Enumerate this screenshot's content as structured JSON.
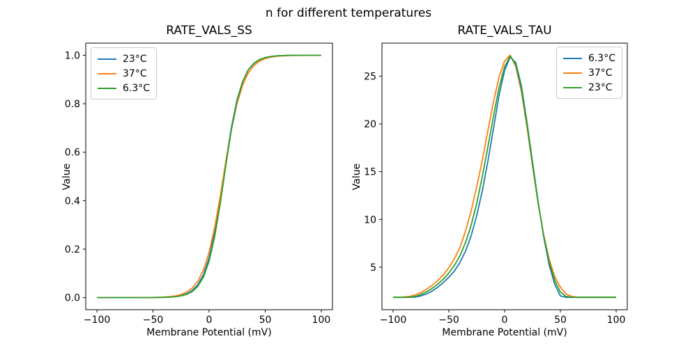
{
  "figure": {
    "suptitle": "n for different temperatures",
    "background": "#ffffff"
  },
  "chart_data": [
    {
      "type": "line",
      "title": "RATE_VALS_SS",
      "xlabel": "Membrane Potential (mV)",
      "ylabel": "Value",
      "xlim": [
        -110,
        110
      ],
      "ylim": [
        -0.05,
        1.05
      ],
      "xticks": [
        -100,
        -50,
        0,
        50,
        100
      ],
      "xtick_labels": [
        "−100",
        "−50",
        "0",
        "50",
        "100"
      ],
      "yticks": [
        0.0,
        0.2,
        0.4,
        0.6,
        0.8,
        1.0
      ],
      "ytick_labels": [
        "0.0",
        "0.2",
        "0.4",
        "0.6",
        "0.8",
        "1.0"
      ],
      "grid": false,
      "legend_position": "upper left",
      "x": [
        -100,
        -95,
        -90,
        -85,
        -80,
        -75,
        -70,
        -65,
        -60,
        -55,
        -50,
        -45,
        -40,
        -35,
        -30,
        -25,
        -20,
        -15,
        -10,
        -5,
        0,
        5,
        10,
        15,
        20,
        25,
        30,
        35,
        40,
        45,
        50,
        55,
        60,
        65,
        70,
        75,
        80,
        85,
        90,
        95,
        100
      ],
      "series": [
        {
          "name": "23°C",
          "color": "#1f77b4",
          "values": [
            0.0,
            0.0,
            0.0,
            0.0,
            0.0,
            0.0,
            0.0,
            0.0001,
            0.0001,
            0.0002,
            0.0004,
            0.0007,
            0.0013,
            0.0025,
            0.0046,
            0.0086,
            0.0159,
            0.0293,
            0.0532,
            0.0949,
            0.1641,
            0.2689,
            0.4073,
            0.5622,
            0.7047,
            0.8176,
            0.8935,
            0.9399,
            0.9668,
            0.982,
            0.9902,
            0.9947,
            0.9971,
            0.9985,
            0.9992,
            0.9996,
            0.9998,
            0.9999,
            0.9999,
            1.0,
            1.0
          ]
        },
        {
          "name": "37°C",
          "color": "#ff7f0e",
          "values": [
            0.0,
            0.0,
            0.0,
            0.0,
            0.0,
            0.0,
            0.0001,
            0.0001,
            0.0002,
            0.0004,
            0.0007,
            0.0013,
            0.0023,
            0.0041,
            0.0072,
            0.0128,
            0.0225,
            0.0393,
            0.0678,
            0.1144,
            0.1868,
            0.2897,
            0.4203,
            0.5629,
            0.6958,
            0.8025,
            0.8784,
            0.9277,
            0.958,
            0.9759,
            0.9863,
            0.9922,
            0.9956,
            0.9975,
            0.9986,
            0.9992,
            0.9995,
            0.9997,
            0.9998,
            0.9999,
            0.9999
          ]
        },
        {
          "name": "6.3°C",
          "color": "#2ca02c",
          "values": [
            0.0,
            0.0,
            0.0,
            0.0,
            0.0,
            0.0,
            0.0,
            0.0,
            0.0001,
            0.0002,
            0.0003,
            0.0005,
            0.001,
            0.0019,
            0.0037,
            0.0071,
            0.0135,
            0.0252,
            0.0469,
            0.0853,
            0.1504,
            0.2516,
            0.3896,
            0.5478,
            0.6972,
            0.8137,
            0.8924,
            0.9402,
            0.9676,
            0.9825,
            0.9906,
            0.995,
            0.9973,
            0.9986,
            0.9992,
            0.9996,
            0.9998,
            0.9999,
            0.9999,
            1.0,
            1.0
          ]
        }
      ]
    },
    {
      "type": "line",
      "title": "RATE_VALS_TAU",
      "xlabel": "Membrane Potential (mV)",
      "ylabel": "Value",
      "xlim": [
        -110,
        110
      ],
      "ylim": [
        0.55,
        28.45
      ],
      "xticks": [
        -100,
        -50,
        0,
        50,
        100
      ],
      "xtick_labels": [
        "−100",
        "−50",
        "0",
        "50",
        "100"
      ],
      "yticks": [
        5,
        10,
        15,
        20,
        25
      ],
      "ytick_labels": [
        "5",
        "10",
        "15",
        "20",
        "25"
      ],
      "grid": false,
      "legend_position": "upper right",
      "x": [
        -100,
        -95,
        -90,
        -85,
        -80,
        -75,
        -70,
        -65,
        -60,
        -55,
        -50,
        -45,
        -40,
        -35,
        -30,
        -25,
        -20,
        -15,
        -10,
        -5,
        0,
        5,
        10,
        15,
        20,
        25,
        30,
        35,
        40,
        45,
        50,
        55,
        60,
        65,
        70,
        75,
        80,
        85,
        90,
        95,
        100
      ],
      "series": [
        {
          "name": "6.3°C",
          "color": "#1f77b4",
          "values": [
            1.85,
            1.85,
            1.85,
            1.85,
            1.88,
            2.0,
            2.2,
            2.5,
            2.9,
            3.4,
            3.95,
            4.6,
            5.5,
            6.7,
            8.3,
            10.4,
            13.0,
            16.1,
            19.5,
            23.0,
            25.6,
            27.0,
            26.4,
            24.0,
            20.2,
            16.0,
            11.9,
            8.2,
            5.2,
            3.2,
            2.0,
            1.85,
            1.85,
            1.85,
            1.85,
            1.85,
            1.85,
            1.85,
            1.85,
            1.85,
            1.85
          ]
        },
        {
          "name": "37°C",
          "color": "#ff7f0e",
          "values": [
            1.85,
            1.86,
            1.88,
            1.95,
            2.1,
            2.35,
            2.7,
            3.1,
            3.6,
            4.2,
            4.95,
            5.9,
            7.1,
            8.8,
            10.9,
            13.4,
            16.2,
            19.3,
            22.3,
            24.9,
            26.6,
            27.2,
            26.0,
            23.4,
            19.7,
            15.6,
            11.7,
            8.4,
            5.8,
            4.0,
            2.9,
            2.2,
            1.95,
            1.87,
            1.85,
            1.85,
            1.85,
            1.85,
            1.85,
            1.85,
            1.85
          ]
        },
        {
          "name": "23°C",
          "color": "#2ca02c",
          "values": [
            1.85,
            1.85,
            1.85,
            1.87,
            1.95,
            2.15,
            2.42,
            2.78,
            3.22,
            3.75,
            4.4,
            5.2,
            6.2,
            7.6,
            9.4,
            11.7,
            14.5,
            17.6,
            20.8,
            23.8,
            26.0,
            27.1,
            26.2,
            23.7,
            20.0,
            15.8,
            11.8,
            8.3,
            5.5,
            3.6,
            2.4,
            1.95,
            1.86,
            1.85,
            1.85,
            1.85,
            1.85,
            1.85,
            1.85,
            1.85,
            1.85
          ]
        }
      ]
    }
  ]
}
